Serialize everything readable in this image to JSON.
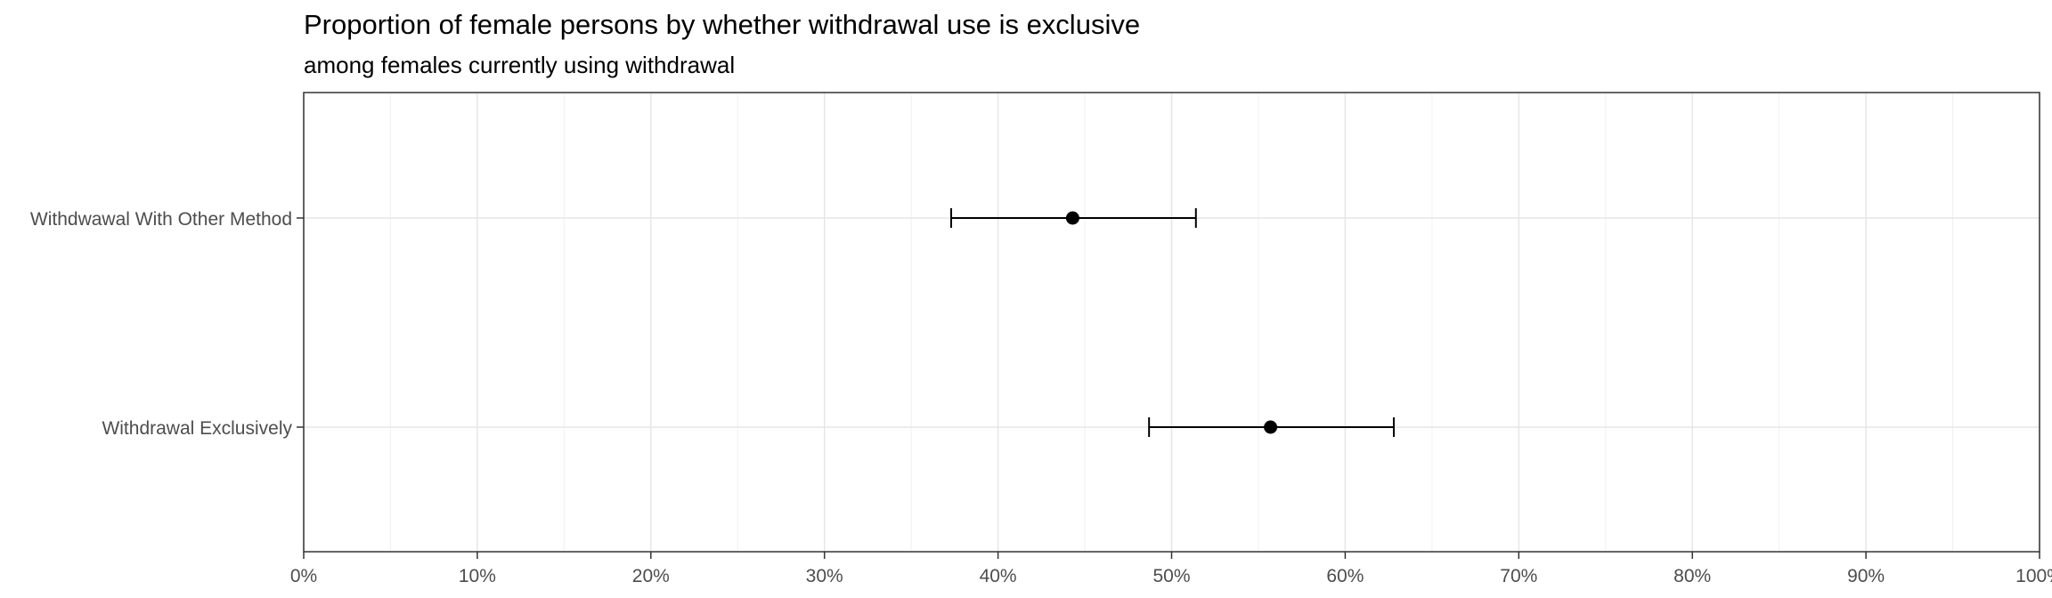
{
  "chart_data": {
    "type": "scatter",
    "title": "Proportion of female persons by whether withdrawal use is exclusive",
    "subtitle": "among females currently using withdrawal",
    "xlabel": "",
    "ylabel": "",
    "xlim": [
      0,
      1
    ],
    "x_ticks": [
      0,
      0.1,
      0.2,
      0.3,
      0.4,
      0.5,
      0.6,
      0.7,
      0.8,
      0.9,
      1.0
    ],
    "x_tick_labels": [
      "0%",
      "10%",
      "20%",
      "30%",
      "40%",
      "50%",
      "60%",
      "70%",
      "80%",
      "90%",
      "100%"
    ],
    "categories": [
      "Withdwawal With Other Method",
      "Withdrawal Exclusively"
    ],
    "points": [
      {
        "category": "Withdwawal With Other Method",
        "estimate": 0.443,
        "lower": 0.373,
        "upper": 0.514
      },
      {
        "category": "Withdrawal Exclusively",
        "estimate": 0.557,
        "lower": 0.487,
        "upper": 0.628
      }
    ],
    "grid": true,
    "legend": "none"
  }
}
